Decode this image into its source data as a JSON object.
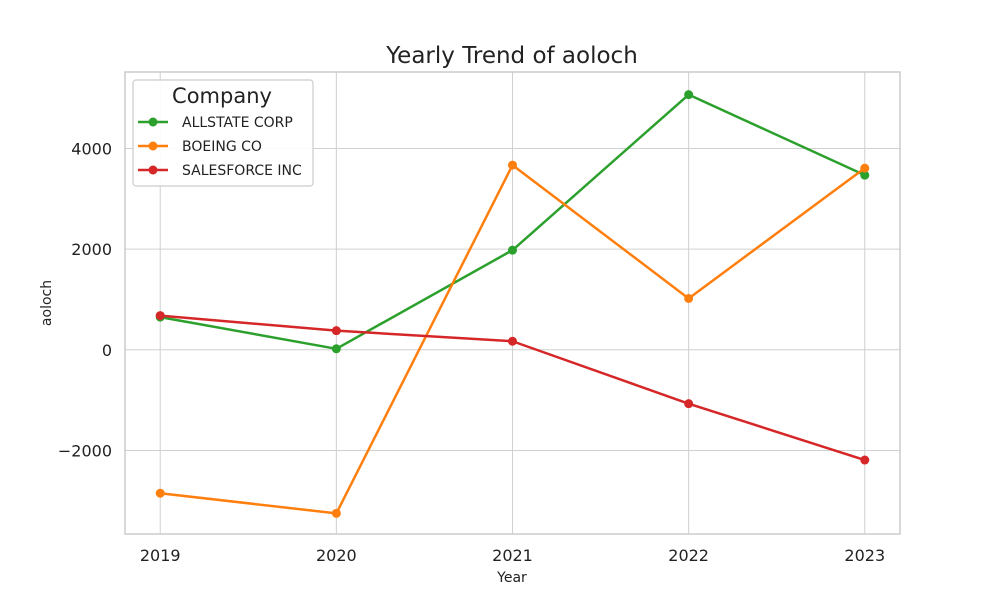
{
  "chart_data": {
    "type": "line",
    "title": "Yearly Trend of aoloch",
    "xlabel": "Year",
    "ylabel": "aoloch",
    "categories": [
      "2019",
      "2020",
      "2021",
      "2022",
      "2023"
    ],
    "xlim": [
      2018.8,
      2023.2
    ],
    "ylim": [
      -3660,
      5520
    ],
    "yticks": [
      -2000,
      0,
      2000,
      4000
    ],
    "grid": true,
    "legend": {
      "title": "Company",
      "placement": "top-left"
    },
    "series": [
      {
        "name": "ALLSTATE CORP",
        "color": "#2ca02c",
        "values": [
          650,
          20,
          1980,
          5070,
          3470
        ]
      },
      {
        "name": "BOEING CO",
        "color": "#ff7f0e",
        "values": [
          -2850,
          -3250,
          3670,
          1020,
          3610
        ]
      },
      {
        "name": "SALESFORCE INC",
        "color": "#d62728",
        "values": [
          680,
          380,
          170,
          -1070,
          -2190
        ]
      }
    ]
  }
}
